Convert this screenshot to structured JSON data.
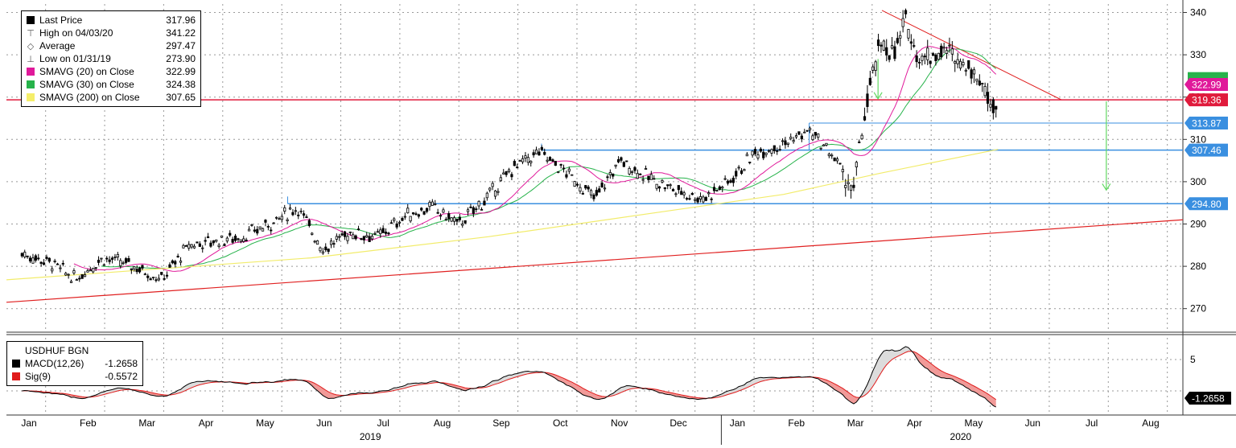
{
  "legend_main": {
    "items": [
      {
        "label": "Last Price",
        "value": "317.96",
        "color": "#000000",
        "icon": "square-swatch-icon"
      },
      {
        "label": "High on 04/03/20",
        "value": "341.22",
        "icon": "high-marker-icon"
      },
      {
        "label": "Average",
        "value": "297.47",
        "icon": "average-marker-icon"
      },
      {
        "label": "Low on 01/31/19",
        "value": "273.90",
        "icon": "low-marker-icon"
      },
      {
        "label": "SMAVG (20)  on Close",
        "value": "322.99",
        "color": "#e0199a",
        "icon": "square-swatch-icon"
      },
      {
        "label": "SMAVG (30)  on Close",
        "value": "324.38",
        "color": "#27b34b",
        "icon": "square-swatch-icon"
      },
      {
        "label": "SMAVG (200)  on Close",
        "value": "307.65",
        "color": "#f5ee6a",
        "icon": "square-swatch-icon"
      }
    ]
  },
  "legend_macd": {
    "title": "USDHUF BGN",
    "items": [
      {
        "label": "MACD(12,26)",
        "value": "-1.2658",
        "color": "#000000"
      },
      {
        "label": "Sig(9)",
        "value": "-0.5572",
        "color": "#e01b1b"
      }
    ]
  },
  "colors": {
    "price": "#000000",
    "sma20": "#e0199a",
    "sma30": "#27b34b",
    "sma200": "#f2ec6b",
    "support_blue": "#3a8fe0",
    "resistance_red": "#e01b3c",
    "trend_red": "#e02020",
    "arrow_green": "#62d962",
    "macd": "#000000",
    "signal": "#e01b1b",
    "fill_pos": "#dcdcdc",
    "fill_neg": "#f19a98"
  },
  "chart_data": {
    "type": "line",
    "title": "USDHUF BGN",
    "price_axis": {
      "ylim": [
        265,
        342
      ],
      "ticks": [
        270,
        280,
        290,
        300,
        310,
        320,
        330,
        340
      ]
    },
    "macd_axis": {
      "ticks": [
        5
      ]
    },
    "x_month_labels": [
      "Jan",
      "Feb",
      "Mar",
      "Apr",
      "May",
      "Jun",
      "Jul",
      "Aug",
      "Sep",
      "Oct",
      "Nov",
      "Dec",
      "Jan",
      "Feb",
      "Mar",
      "Apr",
      "May",
      "Jun",
      "Jul",
      "Aug"
    ],
    "year_labels": [
      "2019",
      "2020"
    ],
    "price_series_weekly": {
      "x": [
        "2019-01-04",
        "2019-01-18",
        "2019-02-01",
        "2019-02-15",
        "2019-03-01",
        "2019-03-15",
        "2019-03-29",
        "2019-04-12",
        "2019-04-26",
        "2019-05-10",
        "2019-05-24",
        "2019-06-07",
        "2019-06-21",
        "2019-07-05",
        "2019-07-19",
        "2019-08-02",
        "2019-08-16",
        "2019-08-30",
        "2019-09-13",
        "2019-09-27",
        "2019-10-11",
        "2019-10-25",
        "2019-11-08",
        "2019-11-22",
        "2019-12-06",
        "2019-12-20",
        "2020-01-03",
        "2020-01-17",
        "2020-01-31",
        "2020-02-14",
        "2020-02-28",
        "2020-03-06",
        "2020-03-13",
        "2020-03-20",
        "2020-03-27",
        "2020-04-03",
        "2020-04-10",
        "2020-04-24",
        "2020-05-08",
        "2020-05-15",
        "2020-05-20"
      ],
      "close": [
        283,
        281,
        277,
        282,
        280,
        277,
        285,
        286,
        287,
        290,
        294,
        284,
        288,
        287,
        292,
        294,
        290,
        296,
        303,
        307,
        302,
        296,
        305,
        301,
        298,
        296,
        300,
        307,
        309,
        312,
        305,
        297,
        318,
        333,
        330,
        338,
        329,
        331,
        326,
        320,
        318
      ]
    },
    "sma20": {
      "last": 322.99
    },
    "sma30": {
      "last": 324.38
    },
    "sma200": {
      "last": 307.65
    },
    "last_price": 317.96,
    "high": {
      "date": "04/03/20",
      "value": 341.22
    },
    "average": 297.47,
    "low": {
      "date": "01/31/19",
      "value": 273.9
    },
    "horizontal_levels": [
      {
        "value": 319.36,
        "label": "319.36",
        "color": "#e01b3c"
      },
      {
        "value": 313.87,
        "label": "313.87",
        "color": "#3a8fe0"
      },
      {
        "value": 307.46,
        "label": "307.46",
        "color": "#3a8fe0"
      },
      {
        "value": 294.8,
        "label": "294.80",
        "color": "#3a8fe0"
      }
    ],
    "right_axis_tags": [
      {
        "value": "322.99",
        "color": "#e0199a"
      },
      {
        "value": "319.36",
        "color": "#e01b3c"
      },
      {
        "value": "313.87",
        "color": "#3a8fe0"
      },
      {
        "value": "307.46",
        "color": "#3a8fe0"
      }
    ],
    "macd": {
      "last": -1.2658,
      "signal_last": -0.5572,
      "tag": "-1.2658"
    }
  }
}
